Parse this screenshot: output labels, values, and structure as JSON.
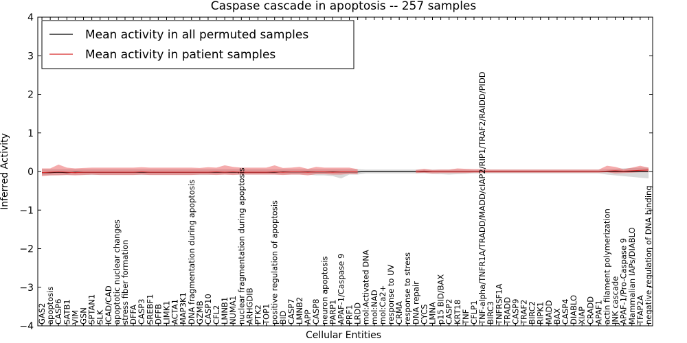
{
  "chart_data": {
    "type": "line",
    "title": "Caspase cascade in apoptosis -- 257 samples",
    "xlabel": "Cellular Entities",
    "ylabel": "Inferred Activity",
    "ylim": [
      -4,
      4
    ],
    "yticks": [
      "−4",
      "−3",
      "−2",
      "−1",
      "0",
      "1",
      "2",
      "3",
      "4"
    ],
    "yticks_values": [
      -4,
      -3,
      -2,
      -1,
      0,
      1,
      2,
      3,
      4
    ],
    "grid": false,
    "legend_position": "top-left",
    "colors": {
      "permuted": "#000000",
      "patient": "#d62728",
      "permuted_band": "#bfbfbf",
      "patient_band": "#e8474a"
    },
    "categories": [
      "GAS2",
      "apoptosis",
      "CASP6",
      "SATB1",
      "VIM",
      "GSN",
      "SPTAN1",
      "SLK",
      "ICAD/CAD",
      "apoptotic nuclear changes",
      "stress fiber formation",
      "DFFA",
      "CASP3",
      "SREBF1",
      "DFFB",
      "LIMK1",
      "ACTA1",
      "MAP3K1",
      "DNA fragmentation during apoptosis",
      "GZMB",
      "CASP10",
      "CFL2",
      "LMNB1",
      "NUMA1",
      "nuclear fragmentation during apoptosis",
      "ARHGDIB",
      "PTK2",
      "TOP1",
      "positive regulation of apoptosis",
      "BID",
      "CASP7",
      "LMNB2",
      "APP",
      "CASP8",
      "neuron apoptosis",
      "PARP1",
      "APAF-1/Caspase 9",
      "PRF1",
      "LRDD",
      "mol:Activated DNA",
      "mol:NAD",
      "mol:Ca2+",
      "response to UV",
      "CRMA",
      "response to stress",
      "DNA repair",
      "CYCS",
      "LMNA",
      "p15 BID/BAX",
      "CASP2",
      "KRT18",
      "TNF",
      "CFLP1",
      "TNF-alpha/TNFR1A/TRADD/MADD/cIAP2/RIP1/TRAF2/RAIDD/PIDD",
      "BIRC3",
      "TNFRSF1A",
      "TRADD",
      "CASP9",
      "TRAF2",
      "BIRC2",
      "RIPK1",
      "MADD",
      "BAX",
      "CASP4",
      "DIABLO",
      "XIAP",
      "CRADD",
      "APAF1",
      "actin filament polymerization",
      "JNK cascade",
      "APAF-1/Pro-Caspase 9",
      "Mammalian IAPs/DIABLO",
      "TFAP2A",
      "negative regulation of DNA binding"
    ],
    "series": [
      {
        "name": "Mean activity in all permuted samples",
        "values": [
          -0.03,
          -0.03,
          -0.02,
          -0.03,
          -0.02,
          -0.02,
          -0.02,
          -0.02,
          -0.02,
          -0.02,
          -0.02,
          -0.02,
          -0.02,
          -0.02,
          -0.02,
          -0.02,
          -0.02,
          -0.02,
          -0.02,
          -0.02,
          -0.02,
          -0.02,
          -0.02,
          -0.02,
          -0.02,
          -0.02,
          -0.02,
          -0.02,
          -0.02,
          -0.01,
          -0.01,
          -0.01,
          -0.01,
          -0.01,
          -0.01,
          -0.01,
          -0.01,
          -0.01,
          -0.01,
          0.0,
          0.0,
          0.0,
          0.0,
          0.0,
          0.0,
          0.0,
          0.0,
          0.0,
          0.0,
          0.0,
          0.0,
          0.0,
          0.0,
          0.0,
          0.0,
          0.0,
          0.0,
          0.0,
          0.0,
          0.0,
          0.0,
          0.0,
          0.0,
          0.0,
          0.0,
          0.0,
          0.0,
          0.0,
          0.0,
          0.0,
          0.0,
          0.0,
          0.0,
          0.0
        ],
        "band_low": [
          -0.1,
          -0.1,
          -0.09,
          -0.09,
          -0.09,
          -0.09,
          -0.09,
          -0.09,
          -0.09,
          -0.09,
          -0.09,
          -0.09,
          -0.09,
          -0.09,
          -0.09,
          -0.09,
          -0.09,
          -0.09,
          -0.09,
          -0.09,
          -0.09,
          -0.08,
          -0.08,
          -0.08,
          -0.08,
          -0.08,
          -0.08,
          -0.08,
          -0.08,
          -0.08,
          -0.08,
          -0.08,
          -0.08,
          -0.1,
          -0.1,
          -0.12,
          -0.18,
          -0.08,
          -0.08,
          -0.05,
          -0.05,
          -0.05,
          -0.05,
          -0.05,
          -0.05,
          -0.05,
          -0.05,
          -0.06,
          -0.07,
          -0.08,
          -0.07,
          -0.06,
          -0.05,
          -0.05,
          -0.05,
          -0.05,
          -0.05,
          -0.05,
          -0.05,
          -0.05,
          -0.05,
          -0.05,
          -0.05,
          -0.05,
          -0.05,
          -0.05,
          -0.05,
          -0.05,
          -0.08,
          -0.1,
          -0.12,
          -0.14,
          -0.16,
          -0.18
        ],
        "band_high": [
          0.06,
          0.06,
          0.06,
          0.06,
          0.06,
          0.06,
          0.06,
          0.06,
          0.06,
          0.06,
          0.06,
          0.06,
          0.06,
          0.06,
          0.06,
          0.06,
          0.06,
          0.06,
          0.06,
          0.06,
          0.06,
          0.06,
          0.06,
          0.06,
          0.06,
          0.06,
          0.06,
          0.06,
          0.06,
          0.06,
          0.06,
          0.06,
          0.06,
          0.06,
          0.06,
          0.06,
          0.06,
          0.06,
          0.06,
          0.05,
          0.05,
          0.05,
          0.05,
          0.05,
          0.05,
          0.05,
          0.05,
          0.05,
          0.05,
          0.05,
          0.05,
          0.05,
          0.05,
          0.05,
          0.05,
          0.05,
          0.05,
          0.05,
          0.05,
          0.05,
          0.05,
          0.05,
          0.05,
          0.05,
          0.05,
          0.05,
          0.05,
          0.05,
          0.06,
          0.07,
          0.08,
          0.09,
          0.1,
          0.1
        ]
      },
      {
        "name": "Mean activity in patient samples",
        "values": [
          -0.03,
          -0.02,
          -0.01,
          -0.02,
          -0.03,
          -0.02,
          -0.02,
          -0.02,
          -0.02,
          -0.02,
          -0.02,
          -0.02,
          -0.01,
          -0.02,
          -0.02,
          -0.02,
          -0.02,
          -0.02,
          -0.02,
          -0.02,
          -0.02,
          -0.01,
          -0.02,
          -0.01,
          -0.02,
          -0.02,
          -0.02,
          -0.02,
          -0.01,
          -0.02,
          -0.01,
          -0.01,
          -0.02,
          -0.01,
          -0.01,
          -0.02,
          -0.01,
          -0.01,
          -0.01,
          null,
          null,
          null,
          null,
          null,
          null,
          0.0,
          0.01,
          0.0,
          0.0,
          0.0,
          0.0,
          0.0,
          0.0,
          0.0,
          0.0,
          0.0,
          0.0,
          0.0,
          0.0,
          0.0,
          0.0,
          0.0,
          0.0,
          0.0,
          0.0,
          0.0,
          0.0,
          0.0,
          0.01,
          0.02,
          0.01,
          0.02,
          0.03,
          0.04
        ],
        "band_low": [
          -0.12,
          -0.1,
          -0.1,
          -0.09,
          -0.1,
          -0.09,
          -0.08,
          -0.09,
          -0.09,
          -0.09,
          -0.09,
          -0.09,
          -0.08,
          -0.09,
          -0.09,
          -0.09,
          -0.09,
          -0.09,
          -0.09,
          -0.08,
          -0.08,
          -0.09,
          -0.08,
          -0.09,
          -0.08,
          -0.08,
          -0.08,
          -0.08,
          -0.08,
          -0.09,
          -0.08,
          -0.08,
          -0.1,
          -0.07,
          -0.07,
          -0.08,
          -0.08,
          -0.06,
          -0.07,
          null,
          null,
          null,
          null,
          null,
          null,
          -0.04,
          -0.03,
          -0.05,
          -0.04,
          -0.04,
          -0.04,
          -0.04,
          -0.03,
          -0.03,
          -0.03,
          -0.03,
          -0.03,
          -0.03,
          -0.03,
          -0.03,
          -0.03,
          -0.03,
          -0.03,
          -0.03,
          -0.03,
          -0.03,
          -0.03,
          -0.03,
          -0.02,
          -0.05,
          -0.04,
          -0.03,
          -0.02,
          -0.02
        ],
        "band_high": [
          0.08,
          0.08,
          0.18,
          0.1,
          0.08,
          0.09,
          0.1,
          0.1,
          0.1,
          0.1,
          0.1,
          0.1,
          0.11,
          0.1,
          0.1,
          0.1,
          0.1,
          0.1,
          0.1,
          0.09,
          0.11,
          0.1,
          0.16,
          0.12,
          0.1,
          0.1,
          0.1,
          0.1,
          0.16,
          0.09,
          0.1,
          0.12,
          0.07,
          0.12,
          0.1,
          0.1,
          0.1,
          0.1,
          0.06,
          null,
          null,
          null,
          null,
          null,
          null,
          0.04,
          0.07,
          0.04,
          0.05,
          0.05,
          0.08,
          0.07,
          0.06,
          0.06,
          0.05,
          0.05,
          0.05,
          0.05,
          0.05,
          0.05,
          0.05,
          0.05,
          0.05,
          0.05,
          0.05,
          0.05,
          0.05,
          0.05,
          0.15,
          0.12,
          0.06,
          0.1,
          0.15,
          0.1
        ]
      }
    ]
  }
}
